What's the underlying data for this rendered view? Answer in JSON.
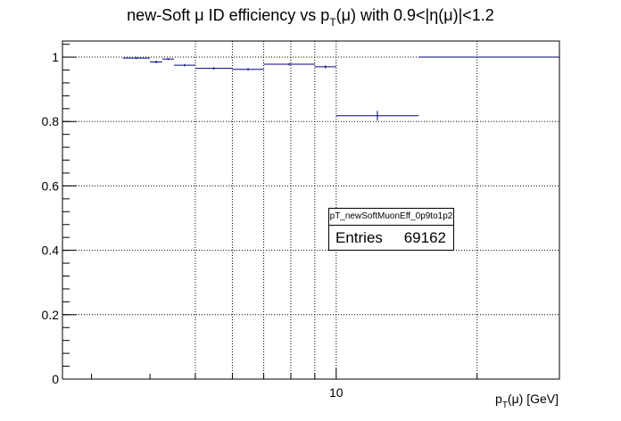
{
  "chart_data": {
    "type": "scatter",
    "title": "new-Soft μ ID efficiency vs p_T(μ) with 0.9<|η(μ)|<1.2",
    "title_parts": {
      "pre": "new-Soft μ ID efficiency vs p",
      "sub": "T",
      "post": "(μ) with 0.9<|η(μ)|<1.2"
    },
    "xlabel_parts": {
      "pre": "p",
      "sub": "T",
      "post": "(μ) [GeV]"
    },
    "xscale": "log",
    "xlim": [
      2.6,
      30
    ],
    "ylim": [
      0,
      1.05
    ],
    "yticks": [
      0,
      0.2,
      0.4,
      0.6,
      0.8,
      1
    ],
    "ytick_labels": [
      "0",
      "0.2",
      "0.4",
      "0.6",
      "0.8",
      "1"
    ],
    "xtick_labels": [
      {
        "value": 10,
        "label": "10"
      }
    ],
    "x_gridlines": [
      5,
      6,
      7,
      8,
      9,
      10,
      20
    ],
    "grid": true,
    "color": "#000080",
    "points": [
      {
        "xlo": 3.5,
        "xhi": 4.0,
        "y": 0.997,
        "err": 0.003
      },
      {
        "xlo": 4.0,
        "xhi": 4.25,
        "y": 0.985,
        "err": 0.004
      },
      {
        "xlo": 4.25,
        "xhi": 4.5,
        "y": 0.994,
        "err": 0.003
      },
      {
        "xlo": 4.5,
        "xhi": 5.0,
        "y": 0.975,
        "err": 0.004
      },
      {
        "xlo": 5.0,
        "xhi": 6.0,
        "y": 0.965,
        "err": 0.004
      },
      {
        "xlo": 6.0,
        "xhi": 7.0,
        "y": 0.962,
        "err": 0.004
      },
      {
        "xlo": 7.0,
        "xhi": 9.0,
        "y": 0.978,
        "err": 0.004
      },
      {
        "xlo": 9.0,
        "xhi": 10.0,
        "y": 0.97,
        "err": 0.005
      },
      {
        "xlo": 10.0,
        "xhi": 15.0,
        "y": 0.818,
        "err": 0.015
      },
      {
        "xlo": 15.0,
        "xhi": 30.0,
        "y": 1.0,
        "err": 0.0
      }
    ]
  },
  "stats_box": {
    "title": "pT_newSoftMuonEff_0p9to1p2",
    "entries_label": "Entries",
    "entries_value": "69162"
  }
}
